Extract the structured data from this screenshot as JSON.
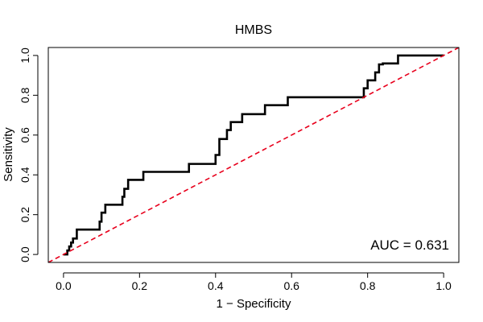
{
  "chart_data": {
    "type": "line",
    "title": "HMBS",
    "xlabel": "1 − Specificity",
    "ylabel": "Sensitivity",
    "xlim": [
      -0.04,
      1.04
    ],
    "ylim": [
      -0.04,
      1.04
    ],
    "xticks": [
      "0.0",
      "0.2",
      "0.4",
      "0.6",
      "0.8",
      "1.0"
    ],
    "yticks": [
      "0.0",
      "0.2",
      "0.4",
      "0.6",
      "0.8",
      "1.0"
    ],
    "annotation": "AUC = 0.631",
    "grid": false,
    "series": [
      {
        "color": "#000000",
        "style": "solid",
        "x": [
          0.0,
          0.01,
          0.01,
          0.015,
          0.015,
          0.02,
          0.02,
          0.025,
          0.025,
          0.035,
          0.035,
          0.095,
          0.095,
          0.1,
          0.1,
          0.11,
          0.11,
          0.155,
          0.155,
          0.16,
          0.16,
          0.17,
          0.17,
          0.21,
          0.21,
          0.33,
          0.33,
          0.4,
          0.4,
          0.41,
          0.41,
          0.43,
          0.43,
          0.44,
          0.44,
          0.47,
          0.47,
          0.53,
          0.53,
          0.59,
          0.59,
          0.79,
          0.79,
          0.8,
          0.8,
          0.82,
          0.82,
          0.83,
          0.83,
          0.84,
          0.84,
          0.88,
          0.88,
          1.0
        ],
        "y": [
          0.0,
          0.0,
          0.02,
          0.02,
          0.04,
          0.04,
          0.06,
          0.06,
          0.08,
          0.08,
          0.125,
          0.125,
          0.165,
          0.165,
          0.21,
          0.21,
          0.25,
          0.25,
          0.29,
          0.29,
          0.33,
          0.33,
          0.375,
          0.375,
          0.415,
          0.415,
          0.455,
          0.455,
          0.5,
          0.5,
          0.58,
          0.58,
          0.625,
          0.625,
          0.665,
          0.665,
          0.705,
          0.705,
          0.75,
          0.75,
          0.79,
          0.79,
          0.835,
          0.835,
          0.875,
          0.875,
          0.915,
          0.915,
          0.955,
          0.955,
          0.96,
          0.96,
          1.0,
          1.0
        ]
      },
      {
        "color": "#e8001c",
        "style": "dashed",
        "x": [
          -0.04,
          1.04
        ],
        "y": [
          -0.04,
          1.04
        ]
      }
    ]
  }
}
